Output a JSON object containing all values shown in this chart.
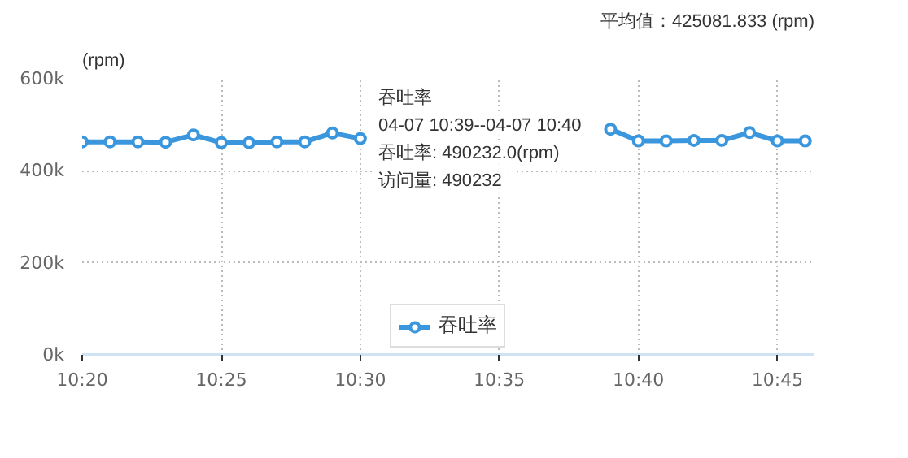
{
  "chart_data": {
    "type": "line",
    "ylabel": "(rpm)",
    "x": [
      10.3333,
      10.35,
      10.3667,
      10.3833,
      10.4,
      10.4167,
      10.4333,
      10.45,
      10.4667,
      10.4833,
      10.5,
      10.5167,
      10.5333,
      10.55,
      10.5667,
      10.5833,
      10.6,
      10.6167,
      10.6333,
      10.65,
      10.6667,
      10.6833,
      10.7,
      10.7167,
      10.7333,
      10.75,
      10.7667
    ],
    "series": [
      {
        "name": "吞吐率",
        "color": "#3a96dd",
        "values": [
          463000,
          463000,
          463000,
          462000,
          478000,
          461000,
          461000,
          463000,
          463000,
          482000,
          470000,
          null,
          null,
          null,
          null,
          null,
          null,
          null,
          null,
          490232,
          465000,
          465000,
          466000,
          466000,
          483000,
          465000,
          465000
        ]
      }
    ],
    "xlim": [
      10.3333,
      10.7722
    ],
    "xticks": [
      {
        "value": 10.3333,
        "label": "10:20"
      },
      {
        "value": 10.4167,
        "label": "10:25"
      },
      {
        "value": 10.5,
        "label": "10:30"
      },
      {
        "value": 10.5833,
        "label": "10:35"
      },
      {
        "value": 10.6667,
        "label": "10:40"
      },
      {
        "value": 10.75,
        "label": "10:45"
      }
    ],
    "ylim": [
      0,
      600000
    ],
    "yticks": [
      {
        "value": 0,
        "label": "0k"
      },
      {
        "value": 200000,
        "label": "200k"
      },
      {
        "value": 400000,
        "label": "400k"
      },
      {
        "value": 600000,
        "label": "600k"
      }
    ],
    "annotations": [
      "平均值：425081.833 (rpm)",
      "吞吐率",
      "04-07 10:39--04-07 10:40",
      "吞吐率:   490232.0(rpm)",
      "访问量:   490232"
    ],
    "grid": true,
    "legend": "bottom",
    "marker": "circle",
    "line_style": "solid"
  }
}
